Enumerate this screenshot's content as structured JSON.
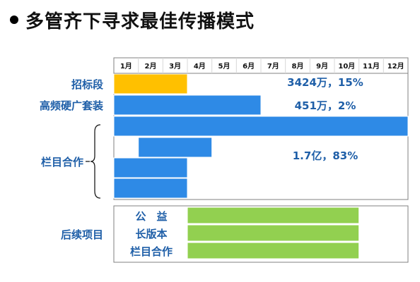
{
  "title": "多管齐下寻求最佳传播模式",
  "colors": {
    "orange": "#FFC000",
    "blue": "#2E8AE6",
    "green": "#92D050",
    "label_text": "#1F5FA8",
    "annotation_text": "#1F5FA8",
    "month_text": "#111111",
    "grid": "#d8d8d8",
    "frame": "#808080"
  },
  "chart_data": {
    "type": "gantt",
    "months": [
      "1月",
      "2月",
      "3月",
      "4月",
      "5月",
      "6月",
      "7月",
      "8月",
      "9月",
      "10月",
      "11月",
      "12月"
    ],
    "groups": [
      {
        "label": "招标段",
        "annotation": "3424万，15%",
        "color": "orange",
        "bars": [
          {
            "start_month": 1,
            "end_month": 3
          }
        ]
      },
      {
        "label": "高频硬广套装",
        "annotation": "451万，2%",
        "color": "blue",
        "bars": [
          {
            "start_month": 1,
            "end_month": 6
          }
        ]
      },
      {
        "label": "栏目合作",
        "annotation": "1.7亿，83%",
        "color": "blue",
        "bars": [
          {
            "start_month": 1,
            "end_month": 12
          },
          {
            "start_month": 2,
            "end_month": 4
          },
          {
            "start_month": 1,
            "end_month": 3
          },
          {
            "start_month": 1,
            "end_month": 3
          }
        ]
      }
    ],
    "followup": {
      "label": "后续项目",
      "color": "green",
      "items": [
        {
          "label": "公　益",
          "start_month": 4,
          "end_month": 10
        },
        {
          "label": "长版本",
          "start_month": 4,
          "end_month": 10
        },
        {
          "label": "栏目合作",
          "start_month": 4,
          "end_month": 10
        }
      ]
    }
  }
}
